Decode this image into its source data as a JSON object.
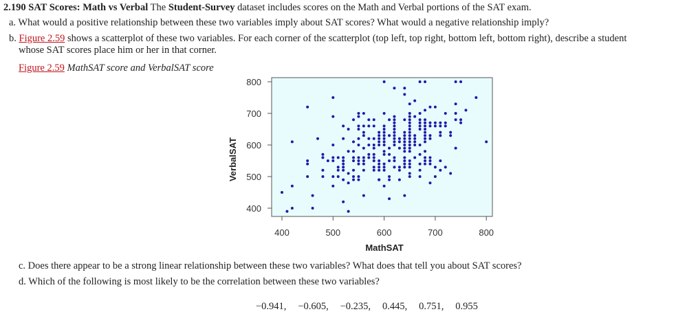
{
  "problem": {
    "number": "2.190",
    "title": "SAT Scores: Math vs Verbal",
    "intro_pre": "The",
    "dataset": "Student-Survey",
    "intro_post": "dataset includes scores on the Math and Verbal portions of the SAT exam.",
    "a": "a. What would a positive relationship between these two variables imply about SAT scores? What would a negative relationship imply?",
    "b_prefix": "b.",
    "b_link": "Figure 2.59",
    "b_text": "shows a scatterplot of these two variables. For each corner of the scatterplot (top left, top right, bottom left, bottom right), describe a student",
    "b_text2": "whose SAT scores place him or her in that corner.",
    "caption_link": "Figure 2.59",
    "caption": "MathSAT score and VerbalSAT score",
    "c": "c. Does there appear to be a strong linear relationship between these two variables? What does that tell you about SAT scores?",
    "d": "d. Which of the following is most likely to be the correlation between these two variables?",
    "choices": [
      "−0.941,",
      "−0.605,",
      "−0.235,",
      "0.445,",
      "0.751,",
      "0.955"
    ]
  },
  "chart_data": {
    "type": "scatter",
    "xlabel": "MathSAT",
    "ylabel": "VerbalSAT",
    "xlim": [
      390,
      810
    ],
    "ylim": [
      380,
      820
    ],
    "xticks": [
      "400",
      "500",
      "600",
      "700",
      "800"
    ],
    "yticks": [
      "400",
      "500",
      "600",
      "700",
      "800"
    ],
    "grid": false,
    "background_color": "#e8fcfe",
    "point_color": "#1c1ca8",
    "points": [
      [
        500,
        750
      ],
      [
        450,
        720
      ],
      [
        500,
        690
      ],
      [
        550,
        700
      ],
      [
        560,
        700
      ],
      [
        550,
        690
      ],
      [
        540,
        680
      ],
      [
        570,
        680
      ],
      [
        580,
        680
      ],
      [
        520,
        660
      ],
      [
        530,
        650
      ],
      [
        550,
        660
      ],
      [
        560,
        660
      ],
      [
        570,
        660
      ],
      [
        580,
        660
      ],
      [
        550,
        650
      ],
      [
        560,
        640
      ],
      [
        560,
        630
      ],
      [
        420,
        610
      ],
      [
        470,
        620
      ],
      [
        520,
        620
      ],
      [
        550,
        620
      ],
      [
        570,
        620
      ],
      [
        580,
        620
      ],
      [
        590,
        630
      ],
      [
        500,
        600
      ],
      [
        540,
        610
      ],
      [
        550,
        600
      ],
      [
        560,
        590
      ],
      [
        570,
        600
      ],
      [
        580,
        600
      ],
      [
        580,
        590
      ],
      [
        590,
        610
      ],
      [
        590,
        600
      ],
      [
        530,
        580
      ],
      [
        540,
        580
      ],
      [
        480,
        570
      ],
      [
        480,
        560
      ],
      [
        490,
        550
      ],
      [
        500,
        560
      ],
      [
        500,
        550
      ],
      [
        510,
        560
      ],
      [
        520,
        560
      ],
      [
        520,
        550
      ],
      [
        520,
        540
      ],
      [
        520,
        530
      ],
      [
        520,
        520
      ],
      [
        540,
        560
      ],
      [
        540,
        550
      ],
      [
        550,
        560
      ],
      [
        550,
        550
      ],
      [
        550,
        540
      ],
      [
        560,
        560
      ],
      [
        560,
        550
      ],
      [
        560,
        540
      ],
      [
        570,
        570
      ],
      [
        570,
        560
      ],
      [
        580,
        570
      ],
      [
        580,
        560
      ],
      [
        580,
        550
      ],
      [
        450,
        550
      ],
      [
        450,
        540
      ],
      [
        510,
        530
      ],
      [
        510,
        520
      ],
      [
        480,
        520
      ],
      [
        540,
        520
      ],
      [
        560,
        520
      ],
      [
        580,
        530
      ],
      [
        580,
        520
      ],
      [
        590,
        530
      ],
      [
        590,
        520
      ],
      [
        530,
        510
      ],
      [
        450,
        500
      ],
      [
        480,
        500
      ],
      [
        500,
        500
      ],
      [
        510,
        500
      ],
      [
        540,
        500
      ],
      [
        550,
        500
      ],
      [
        550,
        490
      ],
      [
        540,
        490
      ],
      [
        520,
        490
      ],
      [
        530,
        480
      ],
      [
        590,
        490
      ],
      [
        420,
        470
      ],
      [
        500,
        470
      ],
      [
        400,
        450
      ],
      [
        460,
        440
      ],
      [
        560,
        440
      ],
      [
        520,
        420
      ],
      [
        420,
        400
      ],
      [
        460,
        400
      ],
      [
        410,
        390
      ],
      [
        530,
        390
      ],
      [
        600,
        800
      ],
      [
        620,
        780
      ],
      [
        640,
        780
      ],
      [
        640,
        760
      ],
      [
        670,
        800
      ],
      [
        680,
        800
      ],
      [
        740,
        800
      ],
      [
        750,
        800
      ],
      [
        780,
        750
      ],
      [
        650,
        730
      ],
      [
        660,
        740
      ],
      [
        690,
        720
      ],
      [
        700,
        720
      ],
      [
        740,
        730
      ],
      [
        760,
        710
      ],
      [
        600,
        700
      ],
      [
        680,
        710
      ],
      [
        670,
        700
      ],
      [
        720,
        700
      ],
      [
        740,
        700
      ],
      [
        610,
        680
      ],
      [
        620,
        690
      ],
      [
        620,
        680
      ],
      [
        640,
        680
      ],
      [
        650,
        700
      ],
      [
        650,
        690
      ],
      [
        650,
        680
      ],
      [
        650,
        670
      ],
      [
        650,
        660
      ],
      [
        650,
        650
      ],
      [
        650,
        640
      ],
      [
        650,
        630
      ],
      [
        650,
        620
      ],
      [
        650,
        610
      ],
      [
        650,
        600
      ],
      [
        650,
        590
      ],
      [
        650,
        580
      ],
      [
        660,
        690
      ],
      [
        670,
        680
      ],
      [
        670,
        670
      ],
      [
        670,
        660
      ],
      [
        670,
        650
      ],
      [
        680,
        680
      ],
      [
        680,
        670
      ],
      [
        680,
        660
      ],
      [
        680,
        650
      ],
      [
        680,
        640
      ],
      [
        680,
        630
      ],
      [
        680,
        620
      ],
      [
        680,
        610
      ],
      [
        690,
        670
      ],
      [
        690,
        660
      ],
      [
        700,
        670
      ],
      [
        700,
        660
      ],
      [
        710,
        670
      ],
      [
        710,
        660
      ],
      [
        720,
        670
      ],
      [
        720,
        660
      ],
      [
        740,
        680
      ],
      [
        750,
        680
      ],
      [
        750,
        670
      ],
      [
        710,
        640
      ],
      [
        710,
        630
      ],
      [
        730,
        640
      ],
      [
        730,
        630
      ],
      [
        690,
        630
      ],
      [
        690,
        620
      ],
      [
        600,
        660
      ],
      [
        600,
        650
      ],
      [
        600,
        640
      ],
      [
        600,
        630
      ],
      [
        600,
        620
      ],
      [
        600,
        610
      ],
      [
        600,
        600
      ],
      [
        620,
        670
      ],
      [
        620,
        660
      ],
      [
        620,
        650
      ],
      [
        620,
        640
      ],
      [
        620,
        630
      ],
      [
        620,
        620
      ],
      [
        620,
        610
      ],
      [
        620,
        600
      ],
      [
        640,
        640
      ],
      [
        640,
        630
      ],
      [
        640,
        620
      ],
      [
        640,
        610
      ],
      [
        640,
        600
      ],
      [
        640,
        590
      ],
      [
        640,
        580
      ],
      [
        590,
        640
      ],
      [
        590,
        620
      ],
      [
        610,
        630
      ],
      [
        630,
        620
      ],
      [
        630,
        610
      ],
      [
        630,
        590
      ],
      [
        660,
        630
      ],
      [
        660,
        620
      ],
      [
        660,
        610
      ],
      [
        660,
        600
      ],
      [
        670,
        600
      ],
      [
        800,
        610
      ],
      [
        740,
        590
      ],
      [
        680,
        580
      ],
      [
        670,
        570
      ],
      [
        660,
        560
      ],
      [
        600,
        580
      ],
      [
        600,
        570
      ],
      [
        610,
        590
      ],
      [
        610,
        570
      ],
      [
        620,
        560
      ],
      [
        620,
        550
      ],
      [
        620,
        530
      ],
      [
        640,
        560
      ],
      [
        640,
        550
      ],
      [
        640,
        540
      ],
      [
        640,
        530
      ],
      [
        650,
        550
      ],
      [
        650,
        540
      ],
      [
        650,
        530
      ],
      [
        680,
        560
      ],
      [
        680,
        550
      ],
      [
        680,
        540
      ],
      [
        690,
        560
      ],
      [
        690,
        550
      ],
      [
        690,
        540
      ],
      [
        710,
        550
      ],
      [
        700,
        530
      ],
      [
        720,
        530
      ],
      [
        710,
        520
      ],
      [
        730,
        510
      ],
      [
        670,
        540
      ],
      [
        670,
        520
      ],
      [
        650,
        510
      ],
      [
        650,
        500
      ],
      [
        670,
        500
      ],
      [
        700,
        500
      ],
      [
        690,
        480
      ],
      [
        590,
        490
      ],
      [
        610,
        490
      ],
      [
        630,
        490
      ],
      [
        610,
        500
      ],
      [
        600,
        470
      ],
      [
        610,
        430
      ],
      [
        640,
        440
      ],
      [
        590,
        540
      ],
      [
        590,
        550
      ],
      [
        600,
        540
      ],
      [
        600,
        530
      ],
      [
        610,
        550
      ],
      [
        600,
        520
      ],
      [
        630,
        530
      ],
      [
        630,
        520
      ]
    ]
  }
}
